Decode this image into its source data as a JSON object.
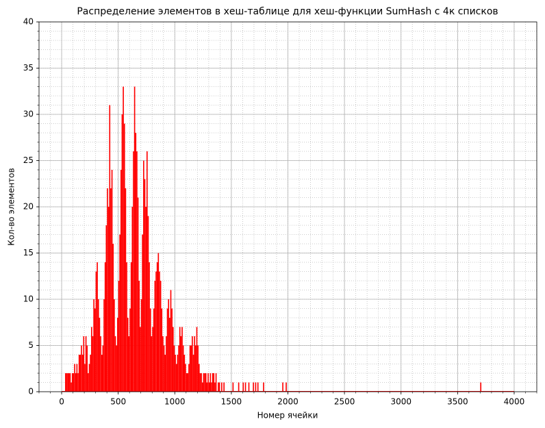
{
  "chart_data": {
    "type": "bar",
    "title": "Распределение элементов в хеш-таблице для хеш-функции SumHash с 4к списков",
    "x_label": "Номер ячейки",
    "y_label": "Кол-во элементов",
    "color": "#ff0000",
    "grid": true,
    "minor_grid": true,
    "xlim": [
      -200,
      4200
    ],
    "ylim": [
      0,
      40
    ],
    "xticks": [
      0,
      500,
      1000,
      1500,
      2000,
      2500,
      3000,
      3500,
      4000
    ],
    "yticks": [
      0,
      5,
      10,
      15,
      20,
      25,
      30,
      35,
      40
    ],
    "xminorticks": [
      -200,
      -100,
      0,
      100,
      200,
      300,
      400,
      500,
      600,
      700,
      800,
      900,
      1000,
      1100,
      1200,
      1300,
      1400,
      1500,
      1600,
      1700,
      1800,
      1900,
      2000,
      2100,
      2200,
      2300,
      2400,
      2500,
      2600,
      2700,
      2800,
      2900,
      3000,
      3100,
      3200,
      3300,
      3400,
      3500,
      3600,
      3700,
      3800,
      3900,
      4000,
      4100,
      4200
    ],
    "yminorticks": [
      0,
      1,
      2,
      3,
      4,
      5,
      6,
      7,
      8,
      9,
      10,
      11,
      12,
      13,
      14,
      15,
      16,
      17,
      18,
      19,
      20,
      21,
      22,
      23,
      24,
      25,
      26,
      27,
      28,
      29,
      30,
      31,
      32,
      33,
      34,
      35,
      36,
      37,
      38,
      39,
      40
    ],
    "x": [
      0,
      10,
      20,
      30,
      40,
      50,
      60,
      70,
      80,
      90,
      100,
      110,
      120,
      130,
      140,
      150,
      160,
      170,
      180,
      190,
      200,
      210,
      220,
      230,
      240,
      250,
      260,
      270,
      280,
      290,
      300,
      310,
      320,
      330,
      340,
      350,
      360,
      370,
      380,
      390,
      400,
      410,
      420,
      430,
      440,
      450,
      460,
      470,
      480,
      490,
      500,
      510,
      520,
      530,
      540,
      550,
      560,
      570,
      580,
      590,
      600,
      610,
      620,
      630,
      640,
      650,
      660,
      670,
      680,
      690,
      700,
      710,
      720,
      730,
      740,
      750,
      760,
      770,
      780,
      790,
      800,
      810,
      820,
      830,
      840,
      850,
      860,
      870,
      880,
      890,
      900,
      910,
      920,
      930,
      940,
      950,
      960,
      970,
      980,
      990,
      1000,
      1010,
      1020,
      1030,
      1040,
      1050,
      1060,
      1070,
      1080,
      1090,
      1100,
      1110,
      1120,
      1130,
      1140,
      1150,
      1160,
      1170,
      1180,
      1190,
      1200,
      1210,
      1220,
      1230,
      1240,
      1250,
      1260,
      1270,
      1280,
      1290,
      1300,
      1310,
      1320,
      1330,
      1340,
      1350,
      1360,
      1370,
      1380,
      1390,
      1400,
      1410,
      1420,
      1430,
      1440,
      1450,
      1460,
      1470,
      1480,
      1490,
      1510,
      1560,
      1600,
      1620,
      1650,
      1690,
      1710,
      1730,
      1780,
      1950,
      1980,
      3700,
      4000
    ],
    "values": [
      0,
      0,
      0,
      2,
      2,
      2,
      2,
      2,
      1,
      2,
      2,
      3,
      2,
      3,
      2,
      4,
      4,
      5,
      4,
      6,
      3,
      6,
      5,
      2,
      3,
      4,
      7,
      6,
      10,
      9,
      13,
      14,
      10,
      8,
      6,
      4,
      5,
      10,
      14,
      18,
      22,
      20,
      31,
      22,
      24,
      16,
      10,
      6,
      5,
      8,
      12,
      17,
      24,
      30,
      33,
      29,
      22,
      14,
      8,
      6,
      9,
      14,
      20,
      26,
      33,
      28,
      26,
      21,
      12,
      7,
      10,
      17,
      25,
      23,
      20,
      26,
      19,
      14,
      9,
      6,
      7,
      9,
      12,
      13,
      14,
      15,
      13,
      12,
      9,
      6,
      5,
      4,
      6,
      9,
      10,
      8,
      11,
      9,
      7,
      5,
      4,
      3,
      4,
      5,
      7,
      6,
      7,
      5,
      4,
      3,
      2,
      2,
      3,
      5,
      5,
      6,
      4,
      6,
      5,
      7,
      5,
      3,
      2,
      2,
      1,
      2,
      2,
      2,
      1,
      2,
      1,
      2,
      1,
      2,
      2,
      1,
      2,
      0,
      1,
      1,
      0,
      1,
      0,
      1,
      0,
      0,
      0,
      0,
      0,
      0,
      1,
      1,
      1,
      1,
      1,
      1,
      1,
      1,
      1,
      1,
      1,
      1,
      0
    ]
  }
}
